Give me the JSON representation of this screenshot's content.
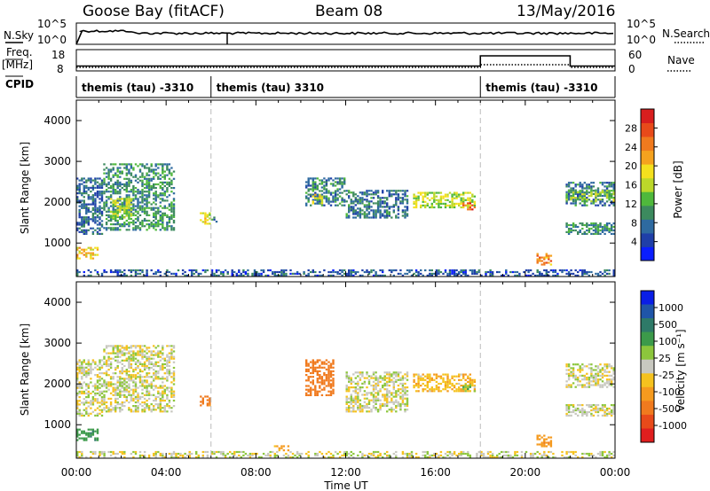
{
  "header": {
    "station": "Goose Bay (fitACF)",
    "beam": "Beam 08",
    "date": "13/May/2016"
  },
  "status_panels": {
    "nsky_label": "N.Sky",
    "nsky_ticks": [
      "10^5",
      "10^0"
    ],
    "nsearch_label": "N.Search",
    "nsearch_ticks": [
      "10^5",
      "10^0"
    ],
    "freq_label": "Freq.",
    "freq_unit": "[MHz]",
    "freq_ticks": [
      "18",
      "8"
    ],
    "nave_label": "Nave",
    "nave_ticks": [
      "60",
      "0"
    ],
    "cpid_label": "CPID",
    "cpid_segments": [
      {
        "start_hour": 0,
        "end_hour": 6,
        "label": "themis (tau) -3310"
      },
      {
        "start_hour": 6,
        "end_hour": 18,
        "label": "themis (tau) 3310"
      },
      {
        "start_hour": 18,
        "end_hour": 24,
        "label": "themis (tau) -3310"
      }
    ]
  },
  "chart_data": [
    {
      "type": "heatmap",
      "name": "power",
      "ylabel": "Slant Range [km]",
      "xlim_hours": [
        0,
        24
      ],
      "ylim": [
        180,
        4500
      ],
      "yticks": [
        1000,
        2000,
        3000,
        4000
      ],
      "grid": "dashed vertical lines at 06:00 and 18:00",
      "colorbar": {
        "label": "Power [dB]",
        "ticks": [
          "4",
          "8",
          "12",
          "16",
          "20",
          "24",
          "28"
        ],
        "colors": [
          "#0a1eff",
          "#1f3fa8",
          "#2e6aa0",
          "#3c8a5e",
          "#4fb83c",
          "#bcd82a",
          "#f4e01e",
          "#f5a21e",
          "#f07a1e",
          "#e84a1a",
          "#d81e1e"
        ]
      },
      "regions": [
        {
          "t": [
            0.0,
            1.0
          ],
          "r": [
            600,
            900
          ],
          "value_db": 20
        },
        {
          "t": [
            0.0,
            1.2
          ],
          "r": [
            1200,
            2600
          ],
          "value_db": 7
        },
        {
          "t": [
            1.2,
            4.4
          ],
          "r": [
            1300,
            2950
          ],
          "value_db": 10
        },
        {
          "t": [
            1.5,
            2.5
          ],
          "r": [
            1600,
            2100
          ],
          "value_db": 16
        },
        {
          "t": [
            5.5,
            6.0
          ],
          "r": [
            1450,
            1750
          ],
          "value_db": 18
        },
        {
          "t": [
            6.0,
            6.3
          ],
          "r": [
            1500,
            1650
          ],
          "value_db": 8
        },
        {
          "t": [
            10.2,
            12.0
          ],
          "r": [
            1900,
            2600
          ],
          "value_db": 9
        },
        {
          "t": [
            10.5,
            11.0
          ],
          "r": [
            1950,
            2200
          ],
          "value_db": 18
        },
        {
          "t": [
            12.0,
            14.8
          ],
          "r": [
            1600,
            2300
          ],
          "value_db": 8
        },
        {
          "t": [
            15.0,
            17.8
          ],
          "r": [
            1850,
            2250
          ],
          "value_db": 16
        },
        {
          "t": [
            17.2,
            17.8
          ],
          "r": [
            1800,
            2000
          ],
          "value_db": 26
        },
        {
          "t": [
            20.5,
            21.2
          ],
          "r": [
            450,
            750
          ],
          "value_db": 24
        },
        {
          "t": [
            21.8,
            24.0
          ],
          "r": [
            1900,
            2500
          ],
          "value_db": 8
        },
        {
          "t": [
            21.8,
            24.0
          ],
          "r": [
            2000,
            2300
          ],
          "value_db": 14
        },
        {
          "t": [
            21.8,
            24.0
          ],
          "r": [
            1200,
            1500
          ],
          "value_db": 10
        },
        {
          "t": [
            0.0,
            24.0
          ],
          "r": [
            180,
            350
          ],
          "value_db": 6
        }
      ]
    },
    {
      "type": "heatmap",
      "name": "velocity",
      "ylabel": "Slant Range [km]",
      "xlabel": "Time UT",
      "xticks": [
        "00:00",
        "04:00",
        "08:00",
        "12:00",
        "16:00",
        "20:00",
        "00:00"
      ],
      "xlim_hours": [
        0,
        24
      ],
      "ylim": [
        180,
        4500
      ],
      "yticks": [
        1000,
        2000,
        3000,
        4000
      ],
      "grid": "dashed vertical lines at 06:00 and 18:00",
      "colorbar": {
        "label": "Velocity [m s⁻¹]",
        "ticks": [
          "1000",
          "500",
          "100",
          "25",
          "-25",
          "-100",
          "-500",
          "-1000"
        ],
        "colors": [
          "#0a1ee6",
          "#1f55a8",
          "#2e7a68",
          "#3c9a4a",
          "#8cc63c",
          "#c8c8c0",
          "#f5c21e",
          "#f59a1e",
          "#f07a1e",
          "#e84a1a",
          "#e01e1e"
        ]
      },
      "regions": [
        {
          "t": [
            0.0,
            1.0
          ],
          "r": [
            600,
            900
          ],
          "value_ms": 200
        },
        {
          "t": [
            0.0,
            1.2
          ],
          "r": [
            1200,
            2600
          ],
          "value_ms": 0
        },
        {
          "t": [
            1.2,
            4.4
          ],
          "r": [
            1300,
            2950
          ],
          "value_ms": 0
        },
        {
          "t": [
            5.5,
            6.0
          ],
          "r": [
            1450,
            1750
          ],
          "value_ms": -300
        },
        {
          "t": [
            8.8,
            9.5
          ],
          "r": [
            350,
            500
          ],
          "value_ms": -150
        },
        {
          "t": [
            10.2,
            11.5
          ],
          "r": [
            1700,
            2600
          ],
          "value_ms": -400
        },
        {
          "t": [
            12.0,
            14.8
          ],
          "r": [
            1300,
            2300
          ],
          "value_ms": 0
        },
        {
          "t": [
            15.0,
            17.8
          ],
          "r": [
            1800,
            2250
          ],
          "value_ms": -80
        },
        {
          "t": [
            17.2,
            17.8
          ],
          "r": [
            1800,
            2000
          ],
          "value_ms": 80
        },
        {
          "t": [
            20.5,
            21.2
          ],
          "r": [
            450,
            750
          ],
          "value_ms": -200
        },
        {
          "t": [
            21.8,
            24.0
          ],
          "r": [
            1900,
            2500
          ],
          "value_ms": 0
        },
        {
          "t": [
            21.8,
            24.0
          ],
          "r": [
            1200,
            1500
          ],
          "value_ms": 0
        },
        {
          "t": [
            0.0,
            24.0
          ],
          "r": [
            180,
            350
          ],
          "value_ms": 0
        }
      ]
    }
  ]
}
